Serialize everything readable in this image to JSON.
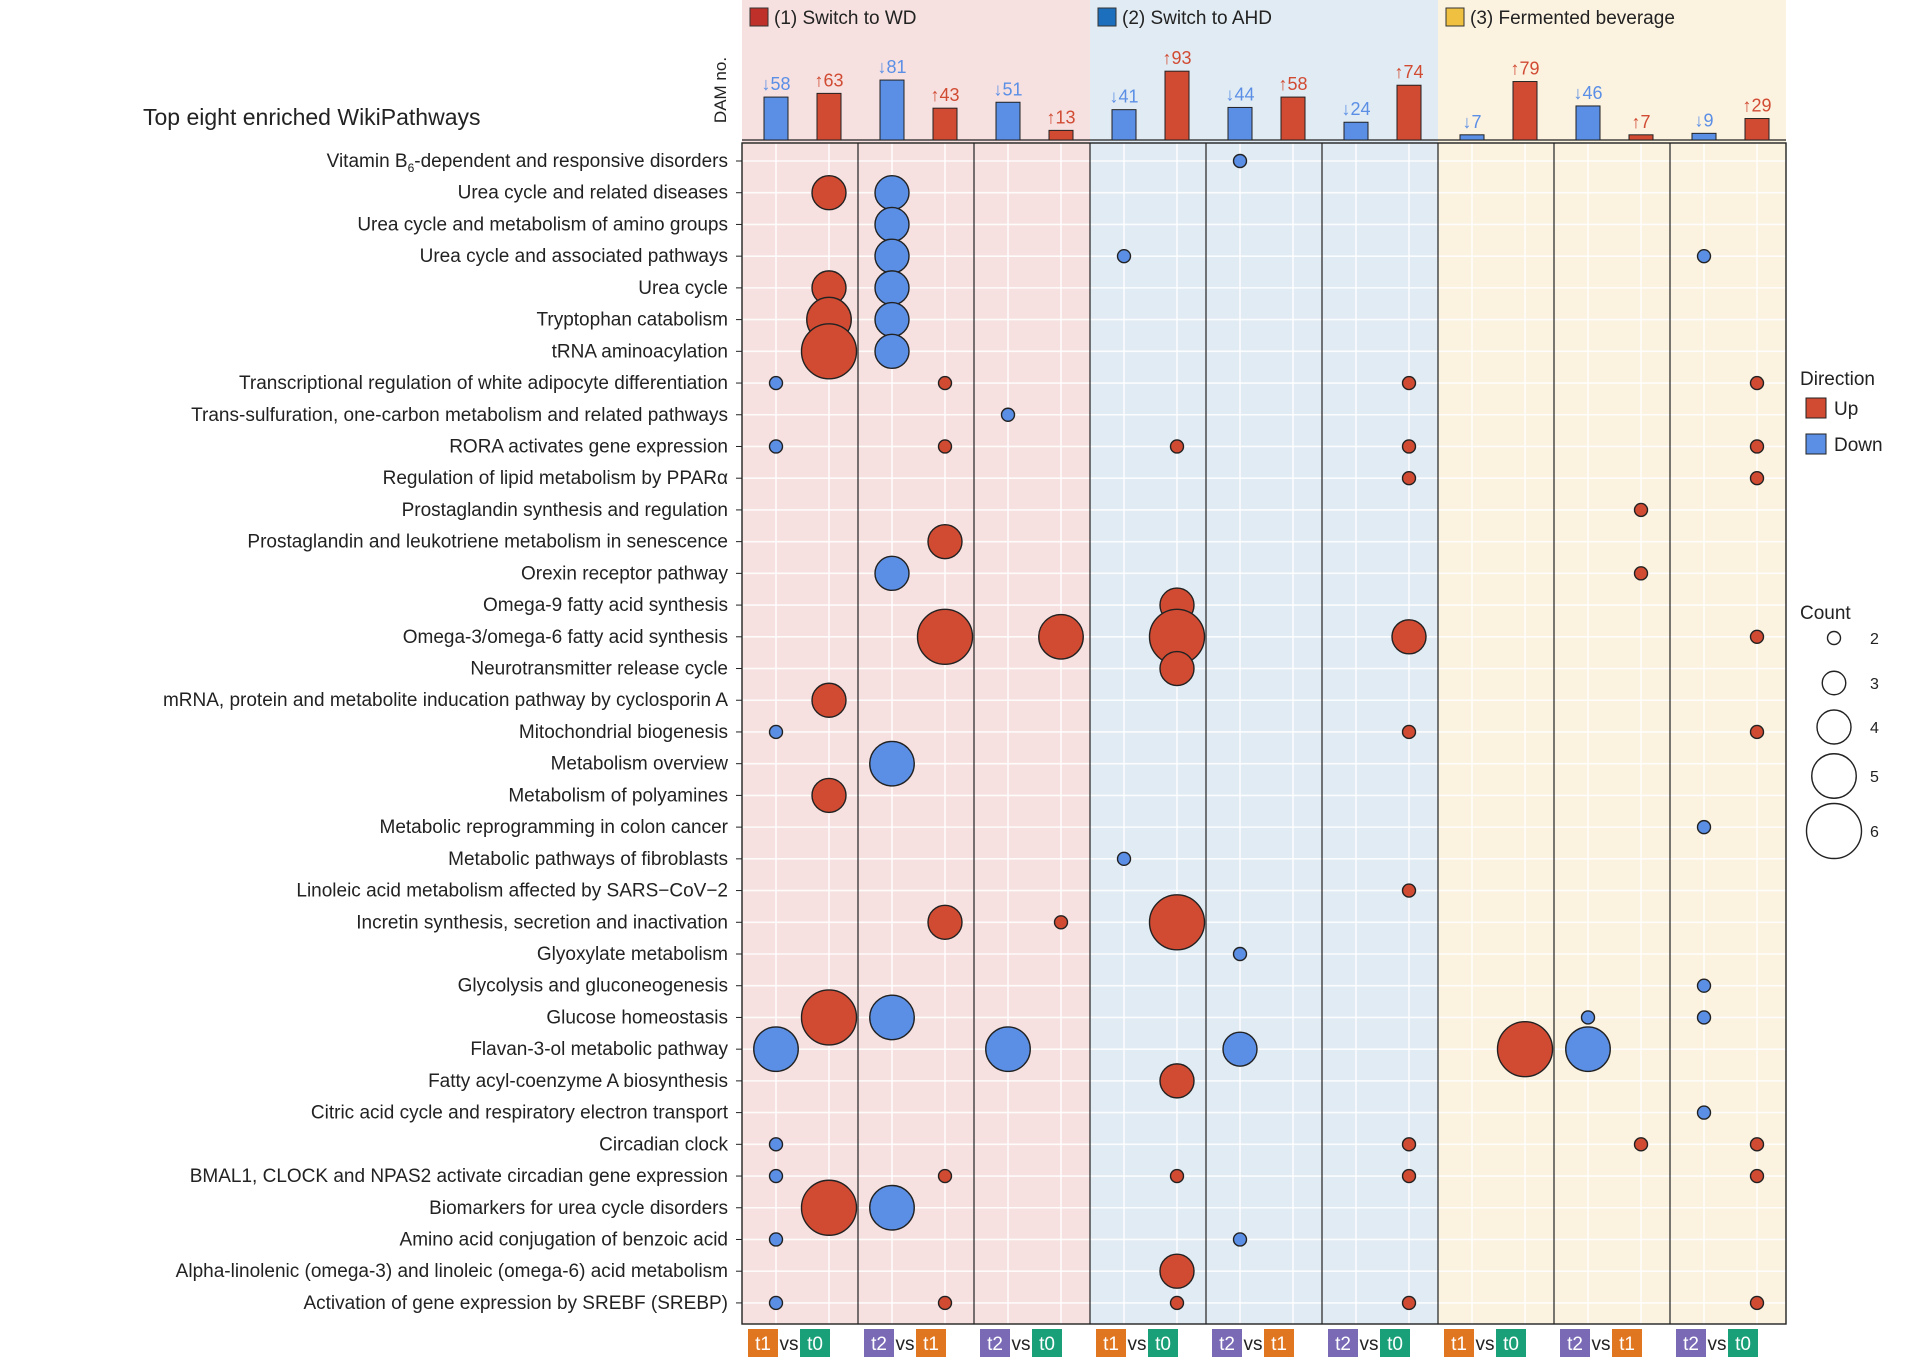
{
  "chart_data": {
    "type": "bubble-dot-plot",
    "title": "Top eight enriched WikiPathways",
    "bar_axis_label": "DAM no.",
    "groups": [
      {
        "label": "(1) Switch to WD",
        "color": "#c0302b",
        "bg": "#f6e1e0"
      },
      {
        "label": "(2) Switch to AHD",
        "color": "#1c6fbd",
        "bg": "#e1ebf3"
      },
      {
        "label": "(3) Fermented beverage",
        "color": "#f0c140",
        "bg": "#fbf2e0"
      }
    ],
    "comparisons": [
      {
        "a": "t1",
        "b": "t0",
        "vs": "vs"
      },
      {
        "a": "t2",
        "b": "t1",
        "vs": "vs"
      },
      {
        "a": "t2",
        "b": "t0",
        "vs": "vs"
      },
      {
        "a": "t1",
        "b": "t0",
        "vs": "vs"
      },
      {
        "a": "t2",
        "b": "t1",
        "vs": "vs"
      },
      {
        "a": "t2",
        "b": "t0",
        "vs": "vs"
      },
      {
        "a": "t1",
        "b": "t0",
        "vs": "vs"
      },
      {
        "a": "t2",
        "b": "t1",
        "vs": "vs"
      },
      {
        "a": "t2",
        "b": "t0",
        "vs": "vs"
      }
    ],
    "dam_counts": [
      {
        "down": 58,
        "up": 63,
        "down_label": "↓58",
        "up_label": "↑63"
      },
      {
        "down": 81,
        "up": 43,
        "down_label": "↓81",
        "up_label": "↑43"
      },
      {
        "down": 51,
        "up": 13,
        "down_label": "↓51",
        "up_label": "↑13"
      },
      {
        "down": 41,
        "up": 93,
        "down_label": "↓41",
        "up_label": "↑93"
      },
      {
        "down": 44,
        "up": 58,
        "down_label": "↓44",
        "up_label": "↑58"
      },
      {
        "down": 24,
        "up": 74,
        "down_label": "↓24",
        "up_label": "↑74"
      },
      {
        "down": 7,
        "up": 79,
        "down_label": "↓7",
        "up_label": "↑79"
      },
      {
        "down": 46,
        "up": 7,
        "down_label": "↓46",
        "up_label": "↑7"
      },
      {
        "down": 9,
        "up": 29,
        "down_label": "↓9",
        "up_label": "↑29"
      }
    ],
    "pathways": [
      "Vitamin B6-dependent and responsive disorders",
      "Urea cycle and related diseases",
      "Urea cycle and metabolism of amino groups",
      "Urea cycle and associated pathways",
      "Urea cycle",
      "Tryptophan catabolism",
      "tRNA aminoacylation",
      "Transcriptional regulation of white adipocyte differentiation",
      "Trans-sulfuration, one-carbon metabolism and related pathways",
      "RORA activates gene expression",
      "Regulation of lipid metabolism by PPARα",
      "Prostaglandin synthesis and regulation",
      "Prostaglandin and leukotriene metabolism in senescence",
      "Orexin receptor pathway",
      "Omega-9 fatty acid synthesis",
      "Omega-3/omega-6 fatty acid synthesis",
      "Neurotransmitter release cycle",
      "mRNA, protein and metabolite inducation pathway by cyclosporin A",
      "Mitochondrial biogenesis",
      "Metabolism overview",
      "Metabolism of polyamines",
      "Metabolic reprogramming in colon cancer",
      "Metabolic pathways of fibroblasts",
      "Linoleic acid metabolism affected by SARS−CoV−2",
      "Incretin synthesis, secretion and inactivation",
      "Glyoxylate metabolism",
      "Glycolysis and gluconeogenesis",
      "Glucose homeostasis",
      "Flavan-3-ol metabolic pathway",
      "Fatty acyl-coenzyme A biosynthesis",
      "Citric acid cycle and respiratory electron transport",
      "Circadian clock",
      "BMAL1, CLOCK and NPAS2 activate circadian gene expression",
      "Biomarkers for urea cycle disorders",
      "Amino acid conjugation of benzoic acid",
      "Alpha-linolenic (omega-3) and linoleic (omega-6) acid metabolism",
      "Activation of gene expression by SREBF (SREBP)"
    ],
    "points": [
      {
        "row": 0,
        "col": 4,
        "dir": "down",
        "count": 2
      },
      {
        "row": 1,
        "col": 0,
        "dir": "up",
        "count": 4
      },
      {
        "row": 1,
        "col": 1,
        "dir": "down",
        "count": 4
      },
      {
        "row": 2,
        "col": 1,
        "dir": "down",
        "count": 4
      },
      {
        "row": 3,
        "col": 1,
        "dir": "down",
        "count": 4
      },
      {
        "row": 3,
        "col": 3,
        "dir": "down",
        "count": 2
      },
      {
        "row": 3,
        "col": 8,
        "dir": "down",
        "count": 2
      },
      {
        "row": 4,
        "col": 0,
        "dir": "up",
        "count": 4
      },
      {
        "row": 4,
        "col": 1,
        "dir": "down",
        "count": 4
      },
      {
        "row": 5,
        "col": 0,
        "dir": "up",
        "count": 5
      },
      {
        "row": 5,
        "col": 1,
        "dir": "down",
        "count": 4
      },
      {
        "row": 6,
        "col": 0,
        "dir": "up",
        "count": 6
      },
      {
        "row": 6,
        "col": 1,
        "dir": "down",
        "count": 4
      },
      {
        "row": 7,
        "col": 0,
        "dir": "down",
        "count": 2
      },
      {
        "row": 7,
        "col": 1,
        "dir": "up",
        "count": 2
      },
      {
        "row": 7,
        "col": 5,
        "dir": "up",
        "count": 2
      },
      {
        "row": 7,
        "col": 8,
        "dir": "up",
        "count": 2
      },
      {
        "row": 8,
        "col": 2,
        "dir": "down",
        "count": 2
      },
      {
        "row": 9,
        "col": 0,
        "dir": "down",
        "count": 2
      },
      {
        "row": 9,
        "col": 1,
        "dir": "up",
        "count": 2
      },
      {
        "row": 9,
        "col": 3,
        "dir": "up",
        "count": 2
      },
      {
        "row": 9,
        "col": 5,
        "dir": "up",
        "count": 2
      },
      {
        "row": 9,
        "col": 8,
        "dir": "up",
        "count": 2
      },
      {
        "row": 10,
        "col": 5,
        "dir": "up",
        "count": 2
      },
      {
        "row": 10,
        "col": 8,
        "dir": "up",
        "count": 2
      },
      {
        "row": 11,
        "col": 7,
        "dir": "up",
        "count": 2
      },
      {
        "row": 12,
        "col": 1,
        "dir": "up",
        "count": 4
      },
      {
        "row": 13,
        "col": 1,
        "dir": "down",
        "count": 4
      },
      {
        "row": 13,
        "col": 7,
        "dir": "up",
        "count": 2
      },
      {
        "row": 14,
        "col": 3,
        "dir": "up",
        "count": 4
      },
      {
        "row": 15,
        "col": 1,
        "dir": "up",
        "count": 6
      },
      {
        "row": 15,
        "col": 2,
        "dir": "up",
        "count": 5
      },
      {
        "row": 15,
        "col": 3,
        "dir": "up",
        "count": 6
      },
      {
        "row": 15,
        "col": 5,
        "dir": "up",
        "count": 4
      },
      {
        "row": 15,
        "col": 8,
        "dir": "up",
        "count": 2
      },
      {
        "row": 16,
        "col": 3,
        "dir": "up",
        "count": 4
      },
      {
        "row": 17,
        "col": 0,
        "dir": "up",
        "count": 4
      },
      {
        "row": 18,
        "col": 0,
        "dir": "down",
        "count": 2
      },
      {
        "row": 18,
        "col": 5,
        "dir": "up",
        "count": 2
      },
      {
        "row": 18,
        "col": 8,
        "dir": "up",
        "count": 2
      },
      {
        "row": 19,
        "col": 1,
        "dir": "down",
        "count": 5
      },
      {
        "row": 20,
        "col": 0,
        "dir": "up",
        "count": 4
      },
      {
        "row": 21,
        "col": 8,
        "dir": "down",
        "count": 2
      },
      {
        "row": 22,
        "col": 3,
        "dir": "down",
        "count": 2
      },
      {
        "row": 23,
        "col": 5,
        "dir": "up",
        "count": 2
      },
      {
        "row": 24,
        "col": 1,
        "dir": "up",
        "count": 4
      },
      {
        "row": 24,
        "col": 2,
        "dir": "up",
        "count": 2
      },
      {
        "row": 24,
        "col": 3,
        "dir": "up",
        "count": 6
      },
      {
        "row": 25,
        "col": 4,
        "dir": "down",
        "count": 2
      },
      {
        "row": 26,
        "col": 8,
        "dir": "down",
        "count": 2
      },
      {
        "row": 27,
        "col": 0,
        "dir": "up",
        "count": 6
      },
      {
        "row": 27,
        "col": 1,
        "dir": "down",
        "count": 5
      },
      {
        "row": 27,
        "col": 7,
        "dir": "down",
        "count": 2
      },
      {
        "row": 27,
        "col": 8,
        "dir": "down",
        "count": 2
      },
      {
        "row": 28,
        "col": 0,
        "dir": "down",
        "count": 5
      },
      {
        "row": 28,
        "col": 2,
        "dir": "down",
        "count": 5
      },
      {
        "row": 28,
        "col": 4,
        "dir": "down",
        "count": 4
      },
      {
        "row": 28,
        "col": 6,
        "dir": "up",
        "count": 6
      },
      {
        "row": 28,
        "col": 7,
        "dir": "down",
        "count": 5
      },
      {
        "row": 29,
        "col": 3,
        "dir": "up",
        "count": 4
      },
      {
        "row": 30,
        "col": 8,
        "dir": "down",
        "count": 2
      },
      {
        "row": 31,
        "col": 0,
        "dir": "down",
        "count": 2
      },
      {
        "row": 31,
        "col": 5,
        "dir": "up",
        "count": 2
      },
      {
        "row": 31,
        "col": 7,
        "dir": "up",
        "count": 2
      },
      {
        "row": 31,
        "col": 8,
        "dir": "up",
        "count": 2
      },
      {
        "row": 32,
        "col": 0,
        "dir": "down",
        "count": 2
      },
      {
        "row": 32,
        "col": 1,
        "dir": "up",
        "count": 2
      },
      {
        "row": 32,
        "col": 3,
        "dir": "up",
        "count": 2
      },
      {
        "row": 32,
        "col": 5,
        "dir": "up",
        "count": 2
      },
      {
        "row": 32,
        "col": 8,
        "dir": "up",
        "count": 2
      },
      {
        "row": 33,
        "col": 0,
        "dir": "up",
        "count": 6
      },
      {
        "row": 33,
        "col": 1,
        "dir": "down",
        "count": 5
      },
      {
        "row": 34,
        "col": 0,
        "dir": "down",
        "count": 2
      },
      {
        "row": 34,
        "col": 4,
        "dir": "down",
        "count": 2
      },
      {
        "row": 35,
        "col": 3,
        "dir": "up",
        "count": 4
      },
      {
        "row": 36,
        "col": 0,
        "dir": "down",
        "count": 2
      },
      {
        "row": 36,
        "col": 1,
        "dir": "up",
        "count": 2
      },
      {
        "row": 36,
        "col": 3,
        "dir": "up",
        "count": 2
      },
      {
        "row": 36,
        "col": 5,
        "dir": "up",
        "count": 2
      },
      {
        "row": 36,
        "col": 8,
        "dir": "up",
        "count": 2
      }
    ],
    "direction_legend": {
      "title": "Direction",
      "items": [
        {
          "label": "Up",
          "color": "#d14b33"
        },
        {
          "label": "Down",
          "color": "#5b8fe6"
        }
      ]
    },
    "count_legend": {
      "title": "Count",
      "values": [
        2,
        3,
        4,
        5,
        6
      ],
      "labels": [
        "2",
        "3",
        "4",
        "5",
        "6"
      ]
    },
    "time_colors": {
      "t0": "#1aa078",
      "t1": "#e0761f",
      "t2": "#7a6ab6"
    },
    "colors": {
      "up": "#d14b33",
      "down": "#5b8fe6"
    }
  }
}
